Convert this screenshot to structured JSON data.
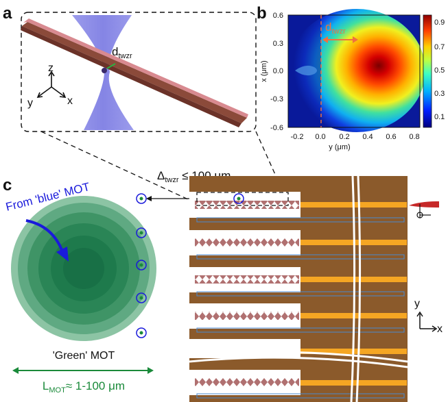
{
  "panels": {
    "a": {
      "label": "a",
      "d_label": "d",
      "d_sub": "twzr",
      "axis_z": "z",
      "axis_y": "y",
      "axis_x": "x"
    },
    "b": {
      "label": "b",
      "d_label": "d",
      "d_sub": "twzr",
      "y_axis_label": "x (μm)",
      "x_axis_label": "y (μm)",
      "y_ticks": [
        "0.6",
        "0.3",
        "0.0",
        "-0.3",
        "-0.6"
      ],
      "x_ticks": [
        "-0.2",
        "0.0",
        "0.2",
        "0.4",
        "0.6",
        "0.8"
      ],
      "colorbar_ticks": [
        "0.9",
        "0.7",
        "0.5",
        "0.3",
        "0.1"
      ]
    },
    "c": {
      "label": "c",
      "delta_label": "Δ",
      "delta_sub": "twzr",
      "delta_text": " ≤ 100 μm",
      "blue_mot_label": "From 'blue' MOT",
      "green_mot_label": "'Green' MOT",
      "lmot_label": "L",
      "lmot_sub": "MOT",
      "lmot_text": "≈ 1-100 μm",
      "axis_y": "y",
      "axis_x": "x"
    }
  },
  "colors": {
    "chip_brown": "#8b5a2b",
    "orange_stripe": "#f5a623",
    "mot_green": "#1a7a4a",
    "blue_arrow": "#1a1adb",
    "green_arrow": "#1a8a3a",
    "beam": "#7b7be0",
    "dashed_orange": "#f07040"
  }
}
